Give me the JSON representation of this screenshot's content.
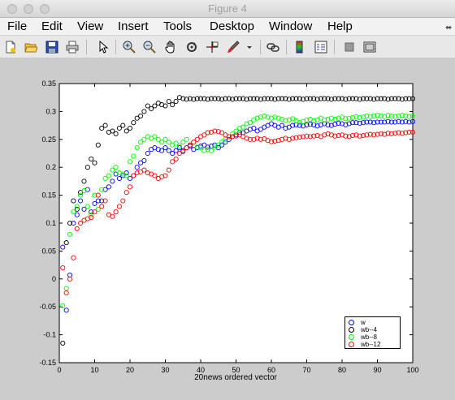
{
  "window": {
    "title": "Figure 4"
  },
  "menu": {
    "items": [
      "File",
      "Edit",
      "View",
      "Insert",
      "Tools",
      "Desktop",
      "Window",
      "Help"
    ]
  },
  "toolbar": {
    "icons": [
      "new-figure-icon",
      "open-file-icon",
      "save-icon",
      "print-icon",
      "pointer-icon",
      "zoom-in-icon",
      "zoom-out-icon",
      "pan-icon",
      "rotate-icon",
      "data-cursor-icon",
      "brush-icon",
      "link-icon",
      "colorbar-icon",
      "legend-icon",
      "hide-plot-tools-icon",
      "show-plot-tools-icon"
    ]
  },
  "chart_data": {
    "type": "scatter",
    "xlabel": "20news ordered vector",
    "ylabel": "",
    "title": "",
    "xlim": [
      0,
      100
    ],
    "ylim": [
      -0.15,
      0.35
    ],
    "xticks": [
      "0",
      "10",
      "20",
      "30",
      "40",
      "50",
      "60",
      "70",
      "80",
      "90",
      "100"
    ],
    "yticks": [
      "-0.15",
      "-0.1",
      "-0.05",
      "0",
      "0.05",
      "0.1",
      "0.15",
      "0.2",
      "0.25",
      "0.3",
      "0.35"
    ],
    "legend": {
      "position": "bottom-right"
    },
    "series": [
      {
        "name": "w",
        "color": "#0000ff",
        "x": [
          1,
          2,
          3,
          4,
          5,
          6,
          7,
          8,
          9,
          10,
          11,
          12,
          13,
          14,
          15,
          16,
          17,
          18,
          19,
          20,
          21,
          22,
          23,
          24,
          25,
          26,
          27,
          28,
          29,
          30,
          31,
          32,
          33,
          34,
          35,
          36,
          37,
          38,
          39,
          40,
          41,
          42,
          43,
          44,
          45,
          46,
          47,
          48,
          49,
          50,
          51,
          52,
          53,
          54,
          55,
          56,
          57,
          58,
          59,
          60,
          61,
          62,
          63,
          64,
          65,
          66,
          67,
          68,
          69,
          70,
          71,
          72,
          73,
          74,
          75,
          76,
          77,
          78,
          79,
          80,
          81,
          82,
          83,
          84,
          85,
          86,
          87,
          88,
          89,
          90,
          91,
          92,
          93,
          94,
          95,
          96,
          97,
          98,
          99,
          100
        ],
        "y": [
          0.057,
          -0.056,
          0.007,
          0.1,
          0.115,
          0.14,
          0.125,
          0.16,
          0.12,
          0.135,
          0.14,
          0.14,
          0.16,
          0.165,
          0.175,
          0.188,
          0.18,
          0.185,
          0.19,
          0.18,
          0.185,
          0.2,
          0.208,
          0.212,
          0.225,
          0.232,
          0.235,
          0.232,
          0.23,
          0.235,
          0.23,
          0.225,
          0.23,
          0.235,
          0.23,
          0.235,
          0.238,
          0.232,
          0.235,
          0.238,
          0.24,
          0.236,
          0.238,
          0.24,
          0.235,
          0.24,
          0.245,
          0.25,
          0.255,
          0.258,
          0.262,
          0.262,
          0.265,
          0.268,
          0.27,
          0.265,
          0.268,
          0.272,
          0.275,
          0.278,
          0.275,
          0.272,
          0.275,
          0.27,
          0.272,
          0.275,
          0.276,
          0.275,
          0.274,
          0.276,
          0.277,
          0.276,
          0.274,
          0.276,
          0.278,
          0.276,
          0.275,
          0.277,
          0.279,
          0.278,
          0.276,
          0.278,
          0.28,
          0.28,
          0.279,
          0.28,
          0.281,
          0.281,
          0.28,
          0.281,
          0.281,
          0.281,
          0.282,
          0.281,
          0.281,
          0.282,
          0.281,
          0.282,
          0.281,
          0.282
        ]
      },
      {
        "name": "wb--4",
        "color": "#000000",
        "x": [
          1,
          2,
          3,
          4,
          5,
          6,
          7,
          8,
          9,
          10,
          11,
          12,
          13,
          14,
          15,
          16,
          17,
          18,
          19,
          20,
          21,
          22,
          23,
          24,
          25,
          26,
          27,
          28,
          29,
          30,
          31,
          32,
          33,
          34,
          35,
          36,
          37,
          38,
          39,
          40,
          41,
          42,
          43,
          44,
          45,
          46,
          47,
          48,
          49,
          50,
          51,
          52,
          53,
          54,
          55,
          56,
          57,
          58,
          59,
          60,
          61,
          62,
          63,
          64,
          65,
          66,
          67,
          68,
          69,
          70,
          71,
          72,
          73,
          74,
          75,
          76,
          77,
          78,
          79,
          80,
          81,
          82,
          83,
          84,
          85,
          86,
          87,
          88,
          89,
          90,
          91,
          92,
          93,
          94,
          95,
          96,
          97,
          98,
          99,
          100
        ],
        "y": [
          -0.115,
          0.065,
          0.1,
          0.14,
          0.125,
          0.155,
          0.175,
          0.2,
          0.215,
          0.208,
          0.24,
          0.27,
          0.275,
          0.263,
          0.265,
          0.26,
          0.27,
          0.275,
          0.265,
          0.27,
          0.28,
          0.288,
          0.292,
          0.3,
          0.31,
          0.305,
          0.31,
          0.315,
          0.312,
          0.31,
          0.318,
          0.312,
          0.318,
          0.325,
          0.323,
          0.322,
          0.323,
          0.322,
          0.323,
          0.323,
          0.323,
          0.322,
          0.323,
          0.323,
          0.323,
          0.322,
          0.323,
          0.323,
          0.322,
          0.323,
          0.323,
          0.323,
          0.322,
          0.323,
          0.323,
          0.323,
          0.322,
          0.323,
          0.323,
          0.323,
          0.322,
          0.323,
          0.323,
          0.323,
          0.322,
          0.323,
          0.323,
          0.323,
          0.322,
          0.323,
          0.323,
          0.323,
          0.322,
          0.323,
          0.323,
          0.323,
          0.322,
          0.323,
          0.323,
          0.323,
          0.322,
          0.323,
          0.323,
          0.323,
          0.322,
          0.323,
          0.323,
          0.323,
          0.322,
          0.323,
          0.323,
          0.323,
          0.322,
          0.323,
          0.323,
          0.323,
          0.322,
          0.323,
          0.323,
          0.323
        ]
      },
      {
        "name": "wb--8",
        "color": "#00ff00",
        "x": [
          1,
          2,
          3,
          4,
          5,
          6,
          7,
          8,
          9,
          10,
          11,
          12,
          13,
          14,
          15,
          16,
          17,
          18,
          19,
          20,
          21,
          22,
          23,
          24,
          25,
          26,
          27,
          28,
          29,
          30,
          31,
          32,
          33,
          34,
          35,
          36,
          37,
          38,
          39,
          40,
          41,
          42,
          43,
          44,
          45,
          46,
          47,
          48,
          49,
          50,
          51,
          52,
          53,
          54,
          55,
          56,
          57,
          58,
          59,
          60,
          61,
          62,
          63,
          64,
          65,
          66,
          67,
          68,
          69,
          70,
          71,
          72,
          73,
          74,
          75,
          76,
          77,
          78,
          79,
          80,
          81,
          82,
          83,
          84,
          85,
          86,
          87,
          88,
          89,
          90,
          91,
          92,
          93,
          94,
          95,
          96,
          97,
          98,
          99,
          100
        ],
        "y": [
          -0.048,
          -0.017,
          0.08,
          0.12,
          0.13,
          0.15,
          0.158,
          0.13,
          0.115,
          0.15,
          0.125,
          0.16,
          0.18,
          0.185,
          0.195,
          0.2,
          0.19,
          0.188,
          0.185,
          0.21,
          0.22,
          0.235,
          0.245,
          0.25,
          0.255,
          0.252,
          0.255,
          0.25,
          0.245,
          0.25,
          0.245,
          0.24,
          0.243,
          0.238,
          0.245,
          0.25,
          0.24,
          0.245,
          0.236,
          0.235,
          0.23,
          0.232,
          0.23,
          0.236,
          0.24,
          0.245,
          0.25,
          0.255,
          0.26,
          0.265,
          0.27,
          0.272,
          0.278,
          0.28,
          0.285,
          0.288,
          0.29,
          0.292,
          0.29,
          0.288,
          0.29,
          0.288,
          0.286,
          0.284,
          0.285,
          0.287,
          0.283,
          0.28,
          0.282,
          0.285,
          0.286,
          0.283,
          0.285,
          0.288,
          0.285,
          0.286,
          0.288,
          0.286,
          0.288,
          0.29,
          0.287,
          0.288,
          0.289,
          0.291,
          0.289,
          0.29,
          0.292,
          0.291,
          0.292,
          0.293,
          0.292,
          0.291,
          0.293,
          0.292,
          0.291,
          0.292,
          0.293,
          0.292,
          0.291,
          0.292
        ]
      },
      {
        "name": "wb--12",
        "color": "#ff0000",
        "x": [
          1,
          2,
          3,
          4,
          5,
          6,
          7,
          8,
          9,
          10,
          11,
          12,
          13,
          14,
          15,
          16,
          17,
          18,
          19,
          20,
          21,
          22,
          23,
          24,
          25,
          26,
          27,
          28,
          29,
          30,
          31,
          32,
          33,
          34,
          35,
          36,
          37,
          38,
          39,
          40,
          41,
          42,
          43,
          44,
          45,
          46,
          47,
          48,
          49,
          50,
          51,
          52,
          53,
          54,
          55,
          56,
          57,
          58,
          59,
          60,
          61,
          62,
          63,
          64,
          65,
          66,
          67,
          68,
          69,
          70,
          71,
          72,
          73,
          74,
          75,
          76,
          77,
          78,
          79,
          80,
          81,
          82,
          83,
          84,
          85,
          86,
          87,
          88,
          89,
          90,
          91,
          92,
          93,
          94,
          95,
          96,
          97,
          98,
          99,
          100
        ],
        "y": [
          0.02,
          -0.025,
          0.0,
          0.038,
          0.09,
          0.1,
          0.105,
          0.108,
          0.11,
          0.12,
          0.15,
          0.13,
          0.14,
          0.115,
          0.112,
          0.12,
          0.13,
          0.14,
          0.155,
          0.165,
          0.185,
          0.19,
          0.192,
          0.195,
          0.19,
          0.188,
          0.185,
          0.18,
          0.183,
          0.185,
          0.195,
          0.21,
          0.215,
          0.225,
          0.228,
          0.235,
          0.24,
          0.245,
          0.25,
          0.255,
          0.258,
          0.262,
          0.263,
          0.265,
          0.264,
          0.262,
          0.258,
          0.255,
          0.255,
          0.256,
          0.258,
          0.255,
          0.252,
          0.25,
          0.25,
          0.252,
          0.25,
          0.251,
          0.248,
          0.246,
          0.247,
          0.248,
          0.25,
          0.252,
          0.25,
          0.252,
          0.253,
          0.254,
          0.255,
          0.256,
          0.255,
          0.256,
          0.257,
          0.255,
          0.258,
          0.26,
          0.258,
          0.256,
          0.257,
          0.258,
          0.256,
          0.255,
          0.257,
          0.258,
          0.256,
          0.257,
          0.258,
          0.259,
          0.258,
          0.259,
          0.26,
          0.259,
          0.261,
          0.26,
          0.261,
          0.262,
          0.261,
          0.262,
          0.263,
          0.263
        ]
      }
    ]
  }
}
